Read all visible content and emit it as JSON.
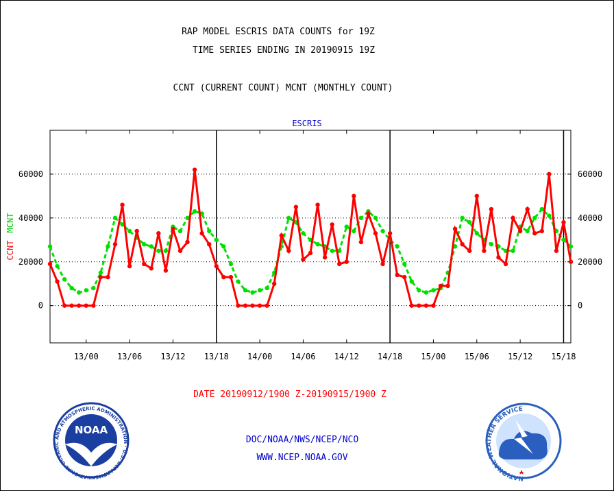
{
  "header": {
    "title_line1": "RAP MODEL ESCRIS DATA COUNTS for 19Z",
    "title_line2": "TIME SERIES ENDING IN 20190915 19Z",
    "subtitle": "CCNT (CURRENT COUNT) MCNT (MONTHLY COUNT)"
  },
  "footer": {
    "date_range": "DATE 20190912/1900 Z-20190915/1900 Z",
    "org_line": "DOC/NOAA/NWS/NCEP/NCO",
    "url": "WWW.NCEP.NOAA.GOV",
    "noaa_logo_text": "NOAA",
    "noaa_ring_text": "NATIONAL OCEANIC AND ATMOSPHERIC ADMINISTRATION · U.S. DEPARTMENT OF COMMERCE ·",
    "nws_ring_text": "NATIONAL WEATHER SERVICE"
  },
  "colors": {
    "ccnt": "#ff0000",
    "mcnt": "#00e000",
    "text": "#000000",
    "panel_label": "#0000cc",
    "footer_link": "#0000cc",
    "date_text": "#ff0000",
    "noaa_blue": "#1a3fa0",
    "nws_blue": "#2a5fbf"
  },
  "chart_data": {
    "type": "line",
    "title": "ESCRIS",
    "ylabel_primary": "CCNT",
    "ylabel_secondary": "MCNT",
    "ylim": [
      -17000,
      80000
    ],
    "yticks": [
      0,
      20000,
      40000,
      60000
    ],
    "ytick_labels": [
      "0",
      "20000",
      "40000",
      "60000"
    ],
    "xlim": [
      0,
      72
    ],
    "xticks": [
      5,
      11,
      17,
      23,
      29,
      35,
      41,
      47,
      53,
      59,
      65,
      71
    ],
    "xtick_labels": [
      "13/00",
      "13/06",
      "13/12",
      "13/18",
      "14/00",
      "14/06",
      "14/12",
      "14/18",
      "15/00",
      "15/06",
      "15/12",
      "15/18"
    ],
    "day_boundaries": [
      23,
      47,
      71
    ],
    "grid": true,
    "x": [
      0,
      1,
      2,
      3,
      4,
      5,
      6,
      7,
      8,
      9,
      10,
      11,
      12,
      13,
      14,
      15,
      16,
      17,
      18,
      19,
      20,
      21,
      22,
      23,
      24,
      25,
      26,
      27,
      28,
      29,
      30,
      31,
      32,
      33,
      34,
      35,
      36,
      37,
      38,
      39,
      40,
      41,
      42,
      43,
      44,
      45,
      46,
      47,
      48,
      49,
      50,
      51,
      52,
      53,
      54,
      55,
      56,
      57,
      58,
      59,
      60,
      61,
      62,
      63,
      64,
      65,
      66,
      67,
      68,
      69,
      70,
      71,
      72
    ],
    "series": [
      {
        "name": "CCNT",
        "values": [
          19000,
          11000,
          0,
          0,
          0,
          0,
          0,
          13000,
          13000,
          28000,
          46000,
          18000,
          34000,
          19000,
          17000,
          33000,
          16000,
          35000,
          25000,
          29000,
          62000,
          33000,
          28000,
          18000,
          13000,
          13000,
          0,
          0,
          0,
          0,
          0,
          10000,
          32000,
          25000,
          45000,
          21000,
          24000,
          46000,
          22000,
          37000,
          19000,
          20000,
          50000,
          29000,
          42000,
          33000,
          19000,
          33000,
          14000,
          13000,
          0,
          0,
          0,
          0,
          9000,
          9000,
          35000,
          28000,
          25000,
          50000,
          25000,
          44000,
          22000,
          19000,
          40000,
          34000,
          44000,
          33000,
          34000,
          60000,
          25000,
          38000,
          20000
        ]
      },
      {
        "name": "MCNT",
        "values": [
          27000,
          18000,
          12000,
          8000,
          6000,
          7000,
          8000,
          15000,
          27000,
          40000,
          37000,
          34000,
          31000,
          28000,
          27000,
          25000,
          25000,
          36000,
          34000,
          40000,
          43000,
          42000,
          34000,
          30000,
          27000,
          19000,
          11000,
          7000,
          6000,
          7000,
          8000,
          15000,
          27000,
          40000,
          38000,
          33000,
          30000,
          28000,
          27000,
          25000,
          25000,
          36000,
          34000,
          40000,
          43000,
          40000,
          34000,
          30000,
          27000,
          19000,
          11000,
          7000,
          6000,
          7000,
          8000,
          15000,
          27000,
          40000,
          38000,
          33000,
          30000,
          28000,
          27000,
          25000,
          25000,
          36000,
          34000,
          40000,
          44000,
          41000,
          34000,
          30000,
          27000
        ]
      }
    ]
  }
}
